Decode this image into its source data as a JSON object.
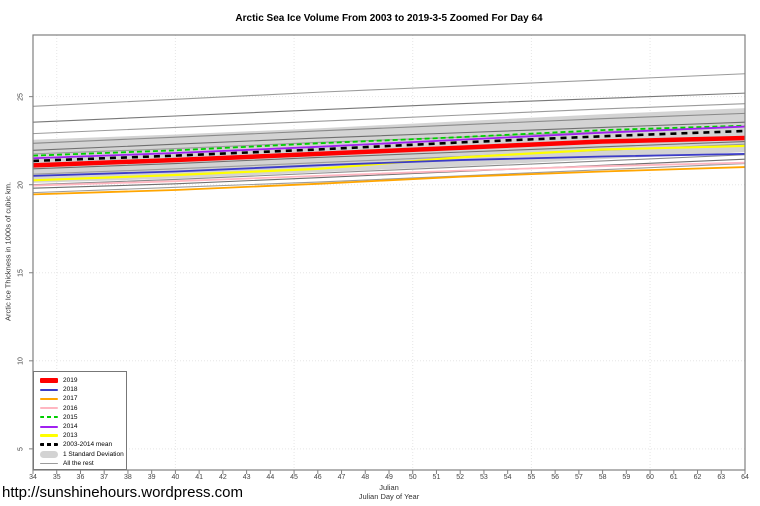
{
  "footer": {
    "url": "http://sunshinehours.wordpress.com"
  },
  "chart_data": {
    "type": "line",
    "title": "Arctic Sea Ice Volume From 2003 to 2019-3-5 Zoomed For Day 64",
    "xlabel": "Julian",
    "xlabel2": "Julian Day of Year",
    "ylabel": "Arctic Ice Thickness in 1000s of cubic km.",
    "xlim": [
      34,
      64
    ],
    "ylim": [
      3.8,
      28.5
    ],
    "x_ticks": [
      34,
      35,
      36,
      37,
      38,
      39,
      40,
      41,
      42,
      43,
      44,
      45,
      46,
      47,
      48,
      49,
      50,
      51,
      52,
      53,
      54,
      55,
      56,
      57,
      58,
      59,
      60,
      61,
      62,
      63,
      64
    ],
    "y_ticks": [
      5,
      10,
      15,
      20,
      25
    ],
    "grid": {
      "x_at": [
        35,
        40,
        45,
        50,
        55,
        60
      ],
      "y_at": [
        5,
        10,
        15,
        20,
        25
      ],
      "style": "dotted",
      "color": "#e5e5e5"
    },
    "axis_color": "#808080",
    "x_samples": [
      34,
      40,
      46,
      52,
      58,
      64
    ],
    "band": {
      "label": "1 Standard Deviation",
      "color": "#d3d3d3",
      "top": [
        22.55,
        22.85,
        23.2,
        23.6,
        24.0,
        24.35
      ],
      "bottom": [
        20.1,
        20.35,
        20.7,
        21.05,
        21.45,
        21.85
      ]
    },
    "rest": {
      "label": "All the rest",
      "lines": [
        {
          "color": "#9b9b9b",
          "values": [
            24.45,
            24.85,
            25.25,
            25.6,
            25.95,
            26.3
          ]
        },
        {
          "color": "#787878",
          "values": [
            23.55,
            23.9,
            24.25,
            24.6,
            24.9,
            25.2
          ]
        },
        {
          "color": "#9b9b9b",
          "values": [
            22.9,
            23.25,
            23.6,
            23.95,
            24.3,
            24.6
          ]
        },
        {
          "color": "#8a8a8a",
          "values": [
            22.35,
            22.7,
            23.05,
            23.4,
            23.75,
            24.05
          ]
        },
        {
          "color": "#6f6f6f",
          "values": [
            21.95,
            22.3,
            22.65,
            22.95,
            23.25,
            23.55
          ]
        },
        {
          "color": "#9b9b9b",
          "values": [
            21.75,
            22.05,
            22.4,
            22.7,
            23.0,
            23.3
          ]
        },
        {
          "color": "#6f6f6f",
          "values": [
            20.9,
            21.2,
            21.55,
            21.85,
            22.15,
            22.45
          ]
        },
        {
          "color": "#9b9b9b",
          "values": [
            20.6,
            20.9,
            21.25,
            21.6,
            21.95,
            22.3
          ]
        },
        {
          "color": "#8a8a8a",
          "values": [
            20.0,
            20.3,
            20.65,
            21.0,
            21.35,
            21.7
          ]
        },
        {
          "color": "#6f6f6f",
          "values": [
            19.8,
            20.05,
            20.4,
            20.75,
            21.1,
            21.45
          ]
        },
        {
          "color": "#9b9b9b",
          "values": [
            19.55,
            19.85,
            20.15,
            20.5,
            20.85,
            21.2
          ]
        }
      ]
    },
    "series": [
      {
        "name": "2013",
        "color": "#ffff00",
        "width": 2.2,
        "values": [
          20.25,
          20.55,
          20.9,
          21.55,
          22.0,
          22.2
        ]
      },
      {
        "name": "2016",
        "color": "#ffb6c1",
        "width": 1.8,
        "values": [
          19.95,
          20.2,
          20.5,
          20.8,
          21.05,
          21.25
        ]
      },
      {
        "name": "2017",
        "color": "#ffa500",
        "width": 1.8,
        "values": [
          19.45,
          19.7,
          20.05,
          20.45,
          20.75,
          21.0
        ]
      },
      {
        "name": "2018",
        "color": "#3c3cc8",
        "width": 1.8,
        "values": [
          20.5,
          20.75,
          21.1,
          21.4,
          21.6,
          21.75
        ]
      },
      {
        "name": "2015",
        "color": "#00cd00",
        "width": 1.8,
        "dash": "5,3",
        "values": [
          21.65,
          21.95,
          22.35,
          22.7,
          23.1,
          23.35
        ]
      },
      {
        "name": "2014",
        "color": "#a020f0",
        "width": 1.8,
        "values": [
          21.5,
          21.8,
          22.15,
          22.55,
          22.95,
          23.3
        ]
      },
      {
        "name": "2019",
        "color": "#ff0000",
        "width": 4.5,
        "values": [
          21.1,
          21.4,
          21.75,
          22.1,
          22.45,
          22.65
        ]
      },
      {
        "name": "2003-2014 mean",
        "color": "#000000",
        "width": 2.6,
        "dash": "6,5",
        "values": [
          21.35,
          21.65,
          22.0,
          22.4,
          22.75,
          23.05
        ]
      }
    ],
    "legend": {
      "items": [
        {
          "label": "2019",
          "color": "#ff0000",
          "h": 5
        },
        {
          "label": "2018",
          "color": "#3c3cc8",
          "h": 2
        },
        {
          "label": "2017",
          "color": "#ffa500",
          "h": 2
        },
        {
          "label": "2016",
          "color": "#ffb6c1",
          "h": 2
        },
        {
          "label": "2015",
          "color": "#00cd00",
          "h": 2,
          "dashed": true
        },
        {
          "label": "2014",
          "color": "#a020f0",
          "h": 2
        },
        {
          "label": "2013",
          "color": "#ffff00",
          "h": 3
        },
        {
          "label": "2003-2014 mean",
          "color": "#000000",
          "h": 3,
          "dashed": true
        },
        {
          "label": "1 Standard Deviation",
          "color": "#d3d3d3",
          "h": 7,
          "band": true
        },
        {
          "label": "All the rest",
          "color": "#9b9b9b",
          "h": 1
        }
      ]
    }
  }
}
